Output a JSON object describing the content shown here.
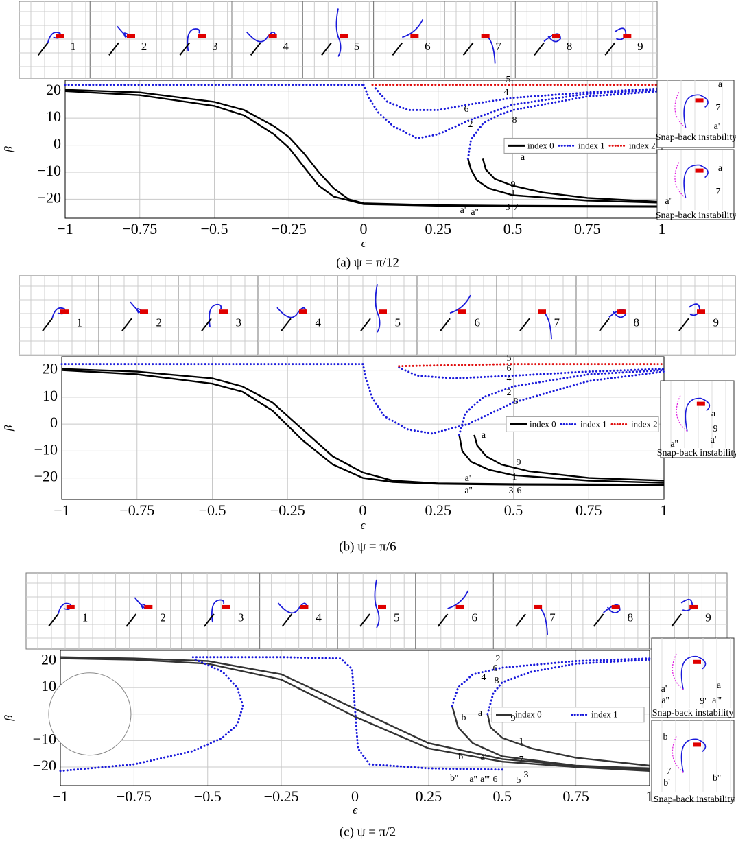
{
  "chart_data": [
    {
      "type": "line",
      "caption": "(a) ψ = π/12",
      "xlabel": "ϵ",
      "ylabel": "β",
      "xlim": [
        -1,
        1
      ],
      "ylim": [
        -27,
        24
      ],
      "xticks": [
        {
          "value": -1,
          "label": "−1"
        },
        {
          "value": -0.75,
          "label": "−0.75"
        },
        {
          "value": -0.5,
          "label": "−0.5"
        },
        {
          "value": -0.25,
          "label": "−0.25"
        },
        0,
        0.25,
        0.5,
        0.75,
        1
      ],
      "yticks": [
        {
          "value": -20,
          "label": "−20"
        },
        {
          "value": -10,
          "label": "−10"
        },
        0,
        10,
        20
      ],
      "grid": true,
      "legend_position": "center right",
      "thumbnail_labels": [
        "1",
        "2",
        "3",
        "4",
        "5",
        "6",
        "7",
        "8",
        "9"
      ],
      "series": [
        {
          "name": "index 0",
          "color": "#000000",
          "linestyle": "solid",
          "x": [
            -1,
            -0.75,
            -0.5,
            -0.4,
            -0.3,
            -0.25,
            -0.2,
            -0.15,
            -0.1,
            -0.05,
            0,
            0.25,
            0.5,
            0.75,
            1,
            null,
            -1,
            -0.75,
            -0.5,
            -0.4,
            -0.3,
            -0.25,
            -0.2,
            -0.15,
            -0.1,
            0,
            0.25,
            0.5,
            1,
            null,
            0.35,
            0.36,
            0.38,
            0.42,
            0.5,
            0.75,
            1,
            null,
            0.4,
            0.41,
            0.44,
            0.5,
            0.6,
            0.75,
            1
          ],
          "values": [
            20.5,
            19.5,
            16,
            13,
            7,
            3,
            -3,
            -10,
            -16,
            -20,
            -21.5,
            -22.2,
            -22.4,
            -22.5,
            -22.6,
            null,
            20,
            18.5,
            14.5,
            11,
            4,
            -1,
            -8,
            -15,
            -19,
            -21.8,
            -22.4,
            -22.6,
            -22.8,
            null,
            -5,
            -9,
            -13,
            -16,
            -18.5,
            -20.5,
            -21.3,
            null,
            -5,
            -9,
            -12.5,
            -15,
            -17.5,
            -19.5,
            -21
          ]
        },
        {
          "name": "index 1",
          "color": "#1a1adb",
          "linestyle": "dotted",
          "x": [
            -1,
            0,
            null,
            0,
            0.02,
            0.05,
            0.1,
            0.18,
            0.25,
            0.35,
            0.5,
            0.75,
            1,
            null,
            0.04,
            0.08,
            0.15,
            0.25,
            0.35,
            0.5,
            0.75,
            1,
            null,
            0.35,
            0.36,
            0.4,
            0.45,
            0.5,
            0.75,
            1
          ],
          "values": [
            22.3,
            22.3,
            null,
            22.3,
            17,
            12,
            7,
            2.5,
            4,
            9,
            15,
            19,
            20.5,
            null,
            21,
            16,
            13,
            13,
            15,
            17.5,
            19.5,
            21,
            null,
            -5,
            2,
            8,
            11,
            13,
            18,
            20
          ]
        },
        {
          "name": "index 2",
          "color": "#e01010",
          "linestyle": "dotted",
          "x": [
            0.03,
            0.5,
            1
          ],
          "values": [
            22.3,
            22.3,
            22.3
          ]
        }
      ],
      "annotations": [
        {
          "text": "5",
          "color": "#000000"
        },
        {
          "text": "4",
          "color": "#000000"
        },
        {
          "text": "6",
          "color": "#000000"
        },
        {
          "text": "2",
          "color": "#000000"
        },
        {
          "text": "8",
          "color": "#000000"
        },
        {
          "text": "a",
          "color": "#e01010"
        },
        {
          "text": "9",
          "color": "#000000"
        },
        {
          "text": "1",
          "color": "#000000"
        },
        {
          "text": "3",
          "color": "#000000"
        },
        {
          "text": "7",
          "color": "#000000"
        },
        {
          "text": "a'",
          "color": "#e01010"
        },
        {
          "text": "a''",
          "color": "#e01010"
        },
        {
          "text": "a",
          "color": "#e01010"
        },
        {
          "text": "7",
          "color": "#000000"
        },
        {
          "text": "a'",
          "color": "#e01010"
        },
        {
          "text": "Snap-back instability",
          "color": "#000000"
        },
        {
          "text": "a",
          "color": "#e01010"
        },
        {
          "text": "7",
          "color": "#000000"
        },
        {
          "text": "a''",
          "color": "#e01010"
        },
        {
          "text": "Snap-back instability",
          "color": "#000000"
        }
      ]
    },
    {
      "type": "line",
      "caption": "(b) ψ = π/6",
      "xlabel": "ϵ",
      "ylabel": "β",
      "xlim": [
        -1,
        1
      ],
      "ylim": [
        -28,
        25
      ],
      "xticks": [
        {
          "value": -1,
          "label": "−1"
        },
        {
          "value": -0.75,
          "label": "−0.75"
        },
        {
          "value": -0.5,
          "label": "−0.5"
        },
        {
          "value": -0.25,
          "label": "−0.25"
        },
        0,
        0.25,
        0.5,
        0.75,
        1
      ],
      "yticks": [
        {
          "value": -20,
          "label": "−20"
        },
        {
          "value": -10,
          "label": "−10"
        },
        0,
        10,
        20
      ],
      "grid": true,
      "legend_position": "center right",
      "thumbnail_labels": [
        "1",
        "2",
        "3",
        "4",
        "5",
        "6",
        "7",
        "8",
        "9"
      ],
      "series": [
        {
          "name": "index 0",
          "color": "#000000",
          "linestyle": "solid",
          "x": [
            -1,
            -0.75,
            -0.5,
            -0.4,
            -0.3,
            -0.2,
            -0.1,
            0,
            0.1,
            0.25,
            0.5,
            1,
            null,
            -1,
            -0.75,
            -0.5,
            -0.4,
            -0.3,
            -0.2,
            -0.1,
            0,
            0.1,
            0.25,
            0.5,
            1,
            null,
            0.32,
            0.33,
            0.36,
            0.42,
            0.5,
            0.75,
            1,
            null,
            0.37,
            0.38,
            0.41,
            0.46,
            0.55,
            0.75,
            1
          ],
          "values": [
            20.5,
            19.5,
            17,
            14,
            8,
            -2,
            -12,
            -18,
            -21,
            -22,
            -22.3,
            -22.5,
            null,
            20,
            18.5,
            15,
            12,
            5,
            -6,
            -15,
            -20,
            -21.5,
            -22.2,
            -22.5,
            -22.7,
            null,
            -4,
            -10,
            -14,
            -17,
            -19,
            -21,
            -21.8,
            null,
            -4,
            -8,
            -12,
            -15,
            -17.5,
            -20,
            -21
          ]
        },
        {
          "name": "index 1",
          "color": "#1a1adb",
          "linestyle": "dotted",
          "x": [
            -1,
            0,
            null,
            0,
            0.01,
            0.03,
            0.07,
            0.15,
            0.23,
            0.35,
            0.5,
            0.75,
            1,
            null,
            0.12,
            0.18,
            0.3,
            0.5,
            0.75,
            1,
            null,
            0.32,
            0.34,
            0.4,
            0.5,
            0.75,
            1
          ],
          "values": [
            22.3,
            22.3,
            null,
            22.3,
            17,
            10,
            3,
            -2,
            -3.5,
            0,
            8,
            16,
            19.5,
            null,
            21,
            18,
            17,
            18,
            19.5,
            20.5,
            null,
            -4,
            4,
            10,
            14,
            18.5,
            20
          ]
        },
        {
          "name": "index 2",
          "color": "#e01010",
          "linestyle": "dotted",
          "x": [
            0.12,
            0.5,
            1
          ],
          "values": [
            21.5,
            22.3,
            22.3
          ]
        }
      ],
      "annotations": [
        {
          "text": "5",
          "color": "#000000"
        },
        {
          "text": "6",
          "color": "#000000"
        },
        {
          "text": "4",
          "color": "#000000"
        },
        {
          "text": "2",
          "color": "#000000"
        },
        {
          "text": "8",
          "color": "#000000"
        },
        {
          "text": "a",
          "color": "#e01010"
        },
        {
          "text": "9",
          "color": "#000000"
        },
        {
          "text": "1",
          "color": "#000000"
        },
        {
          "text": "a'",
          "color": "#e01010"
        },
        {
          "text": "a''",
          "color": "#e01010"
        },
        {
          "text": "3",
          "color": "#000000"
        },
        {
          "text": "6",
          "color": "#000000"
        },
        {
          "text": "a",
          "color": "#e01010"
        },
        {
          "text": "9",
          "color": "#000000"
        },
        {
          "text": "a''",
          "color": "#e01010"
        },
        {
          "text": "a'",
          "color": "#e01010"
        },
        {
          "text": "Snap-back instability",
          "color": "#000000"
        }
      ]
    },
    {
      "type": "line",
      "caption": "(c) ψ = π/2",
      "xlabel": "ϵ",
      "ylabel": "β",
      "xlim": [
        -1,
        1
      ],
      "ylim": [
        -27,
        24
      ],
      "xticks": [
        {
          "value": -1,
          "label": "−1"
        },
        {
          "value": -0.75,
          "label": "−0.75"
        },
        {
          "value": -0.5,
          "label": "−0.5"
        },
        {
          "value": -0.25,
          "label": "−0.25"
        },
        0,
        0.25,
        0.5,
        0.75,
        1
      ],
      "yticks": [
        {
          "value": -20,
          "label": "−20"
        },
        {
          "value": -10,
          "label": "−10"
        },
        0,
        10,
        20
      ],
      "grid": true,
      "legend_position": "center right",
      "thumbnail_labels": [
        "1",
        "2",
        "3",
        "4",
        "5",
        "6",
        "7",
        "8",
        "9"
      ],
      "series": [
        {
          "name": "index 0",
          "color": "#333333",
          "linestyle": "solid",
          "x": [
            -1,
            -0.75,
            -0.5,
            -0.25,
            0,
            0.25,
            0.5,
            0.75,
            1,
            null,
            -1,
            -0.75,
            -0.5,
            -0.25,
            0,
            0.25,
            0.5,
            0.75,
            1,
            null,
            0.33,
            0.35,
            0.4,
            0.5,
            0.75,
            1,
            null,
            0.45,
            0.46,
            0.5,
            0.6,
            0.75,
            1
          ],
          "values": [
            21.5,
            21,
            20,
            15,
            2,
            -11,
            -17,
            -19.5,
            -21,
            null,
            21,
            20.5,
            19,
            13,
            -1,
            -13,
            -18,
            -20,
            -21.5,
            null,
            3,
            -5,
            -11,
            -16,
            -19.5,
            -20.5,
            null,
            0,
            -5,
            -9,
            -13,
            -16.5,
            -19.5
          ]
        },
        {
          "name": "index 1",
          "color": "#1a1adb",
          "linestyle": "dotted",
          "x": [
            -1,
            -0.75,
            -0.55,
            -0.45,
            -0.4,
            -0.38,
            -0.4,
            -0.45,
            -0.55,
            null,
            -0.55,
            -0.25,
            -0.05,
            -0.01,
            0,
            0.01,
            0.05,
            0.25,
            0.5,
            null,
            0.33,
            0.35,
            0.4,
            0.5,
            0.75,
            1,
            null,
            0.45,
            0.47,
            0.5,
            0.6,
            0.75,
            1
          ],
          "values": [
            -21.5,
            -19,
            -14,
            -9,
            -4,
            3,
            10,
            16,
            21,
            null,
            21.5,
            21.5,
            21,
            17,
            2,
            -13,
            -19,
            -20.5,
            -21,
            null,
            3,
            10,
            15,
            17.5,
            20,
            21,
            null,
            0,
            8,
            12,
            16,
            19,
            20.5
          ]
        }
      ],
      "annotations": [
        {
          "text": "2",
          "color": "#000000"
        },
        {
          "text": "6",
          "color": "#000000"
        },
        {
          "text": "4",
          "color": "#000000"
        },
        {
          "text": "8",
          "color": "#000000"
        },
        {
          "text": "b",
          "color": "#e01010"
        },
        {
          "text": "a",
          "color": "#e01010"
        },
        {
          "text": "9",
          "color": "#000000"
        },
        {
          "text": "1",
          "color": "#000000"
        },
        {
          "text": "7",
          "color": "#000000"
        },
        {
          "text": "b'",
          "color": "#e01010"
        },
        {
          "text": "a'",
          "color": "#e01010"
        },
        {
          "text": "b''",
          "color": "#e01010"
        },
        {
          "text": "a''",
          "color": "#e01010"
        },
        {
          "text": "a'''",
          "color": "#e01010"
        },
        {
          "text": "6",
          "color": "#000000"
        },
        {
          "text": "5",
          "color": "#000000"
        },
        {
          "text": "3",
          "color": "#000000"
        },
        {
          "text": "a'",
          "color": "#e01010"
        },
        {
          "text": "a",
          "color": "#e01010"
        },
        {
          "text": "9'",
          "color": "#000000"
        },
        {
          "text": "a''",
          "color": "#e01010"
        },
        {
          "text": "a'''",
          "color": "#e01010"
        },
        {
          "text": "Snap-back instability",
          "color": "#000000"
        },
        {
          "text": "b",
          "color": "#e01010"
        },
        {
          "text": "7",
          "color": "#000000"
        },
        {
          "text": "b'",
          "color": "#e01010"
        },
        {
          "text": "b''",
          "color": "#e01010"
        },
        {
          "text": "Snap-back instability",
          "color": "#000000"
        }
      ]
    }
  ]
}
